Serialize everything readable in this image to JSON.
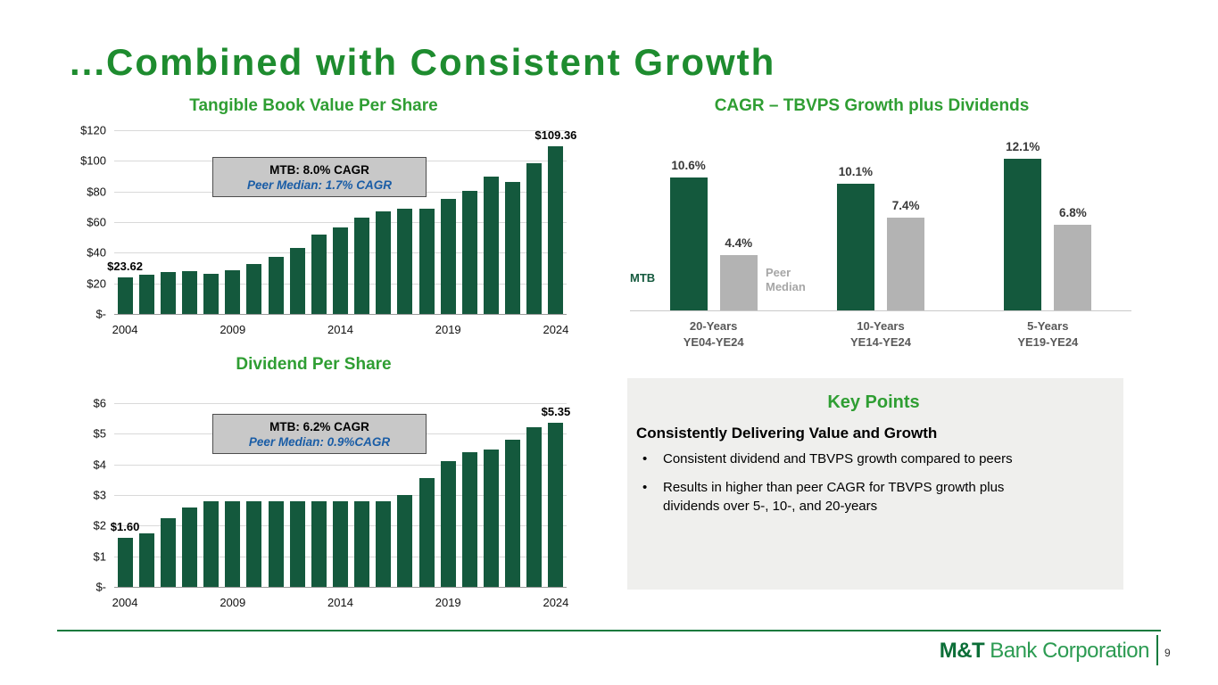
{
  "slide": {
    "title": "...Combined with Consistent Growth"
  },
  "footer": {
    "logo_bold": "M&T",
    "logo_rest": "Bank Corporation",
    "page_number": "9"
  },
  "colors": {
    "mtb_bar_green": "#14593D",
    "peer_bar_gray": "#B3B3B3",
    "title_green": "#1E8C2F",
    "section_title_green": "#2F9E33",
    "callout_blue": "#1A5DA6",
    "callout_bg": "#C8C8C8",
    "key_points_bg": "#EFEFED",
    "footer_green": "#127A3D"
  },
  "chart_data": [
    {
      "id": "tbvps",
      "type": "bar",
      "title": "Tangible Book Value Per Share",
      "x": [
        2004,
        2005,
        2006,
        2007,
        2008,
        2009,
        2010,
        2011,
        2012,
        2013,
        2014,
        2015,
        2016,
        2017,
        2018,
        2019,
        2020,
        2021,
        2022,
        2023,
        2024
      ],
      "values": [
        23.62,
        25.5,
        27.5,
        28,
        26,
        28.5,
        32.5,
        37.5,
        43,
        52,
        56.5,
        63,
        67,
        68.5,
        68.5,
        75,
        80.5,
        89.5,
        86,
        98.5,
        109.36
      ],
      "ylim": [
        0,
        120
      ],
      "yticks": [
        0,
        20,
        40,
        60,
        80,
        100,
        120
      ],
      "ytick_labels": [
        "$-",
        "$20",
        "$40",
        "$60",
        "$80",
        "$100",
        "$120"
      ],
      "xtick_labels": [
        "2004",
        "2009",
        "2014",
        "2019",
        "2024"
      ],
      "xtick_indexes": [
        0,
        5,
        10,
        15,
        20
      ],
      "first_label": "$23.62",
      "last_label": "$109.36",
      "callout": {
        "line1": "MTB: 8.0% CAGR",
        "line2": "Peer Median: 1.7% CAGR"
      },
      "grid": true,
      "legend": "none"
    },
    {
      "id": "cagr",
      "type": "grouped_bar",
      "title": "CAGR – TBVPS Growth plus Dividends",
      "series_labels": {
        "mtb": "MTB",
        "peer_line1": "Peer",
        "peer_line2": "Median"
      },
      "groups": [
        {
          "period": "20-Years",
          "range": "YE04-YE24",
          "mtb": 10.6,
          "peer": 4.4,
          "mtb_label": "10.6%",
          "peer_label": "4.4%"
        },
        {
          "period": "10-Years",
          "range": "YE14-YE24",
          "mtb": 10.1,
          "peer": 7.4,
          "mtb_label": "10.1%",
          "peer_label": "7.4%"
        },
        {
          "period": "5-Years",
          "range": "YE19-YE24",
          "mtb": 12.1,
          "peer": 6.8,
          "mtb_label": "12.1%",
          "peer_label": "6.8%"
        }
      ],
      "ylim": [
        0,
        13.2
      ],
      "grid": false,
      "legend": "inline-left"
    },
    {
      "id": "dps",
      "type": "bar",
      "title": "Dividend Per Share",
      "x": [
        2004,
        2005,
        2006,
        2007,
        2008,
        2009,
        2010,
        2011,
        2012,
        2013,
        2014,
        2015,
        2016,
        2017,
        2018,
        2019,
        2020,
        2021,
        2022,
        2023,
        2024
      ],
      "values": [
        1.6,
        1.75,
        2.25,
        2.6,
        2.8,
        2.8,
        2.8,
        2.8,
        2.8,
        2.8,
        2.8,
        2.8,
        2.8,
        3.0,
        3.55,
        4.1,
        4.4,
        4.5,
        4.8,
        5.2,
        5.35
      ],
      "ylim": [
        0,
        6
      ],
      "yticks": [
        0,
        1,
        2,
        3,
        4,
        5,
        6
      ],
      "ytick_labels": [
        "$-",
        "$1",
        "$2",
        "$3",
        "$4",
        "$5",
        "$6"
      ],
      "xtick_labels": [
        "2004",
        "2009",
        "2014",
        "2019",
        "2024"
      ],
      "xtick_indexes": [
        0,
        5,
        10,
        15,
        20
      ],
      "first_label": "$1.60",
      "last_label": "$5.35",
      "callout": {
        "line1": "MTB: 6.2% CAGR",
        "line2": "Peer Median: 0.9%CAGR"
      },
      "grid": true,
      "legend": "none"
    }
  ],
  "key_points": {
    "title": "Key Points",
    "heading": "Consistently Delivering Value and Growth",
    "bullet_glyph": "•",
    "bullets": [
      "Consistent dividend and TBVPS growth compared to peers",
      "Results in higher than peer CAGR for TBVPS growth plus dividends over 5-, 10-, and 20-years"
    ]
  }
}
